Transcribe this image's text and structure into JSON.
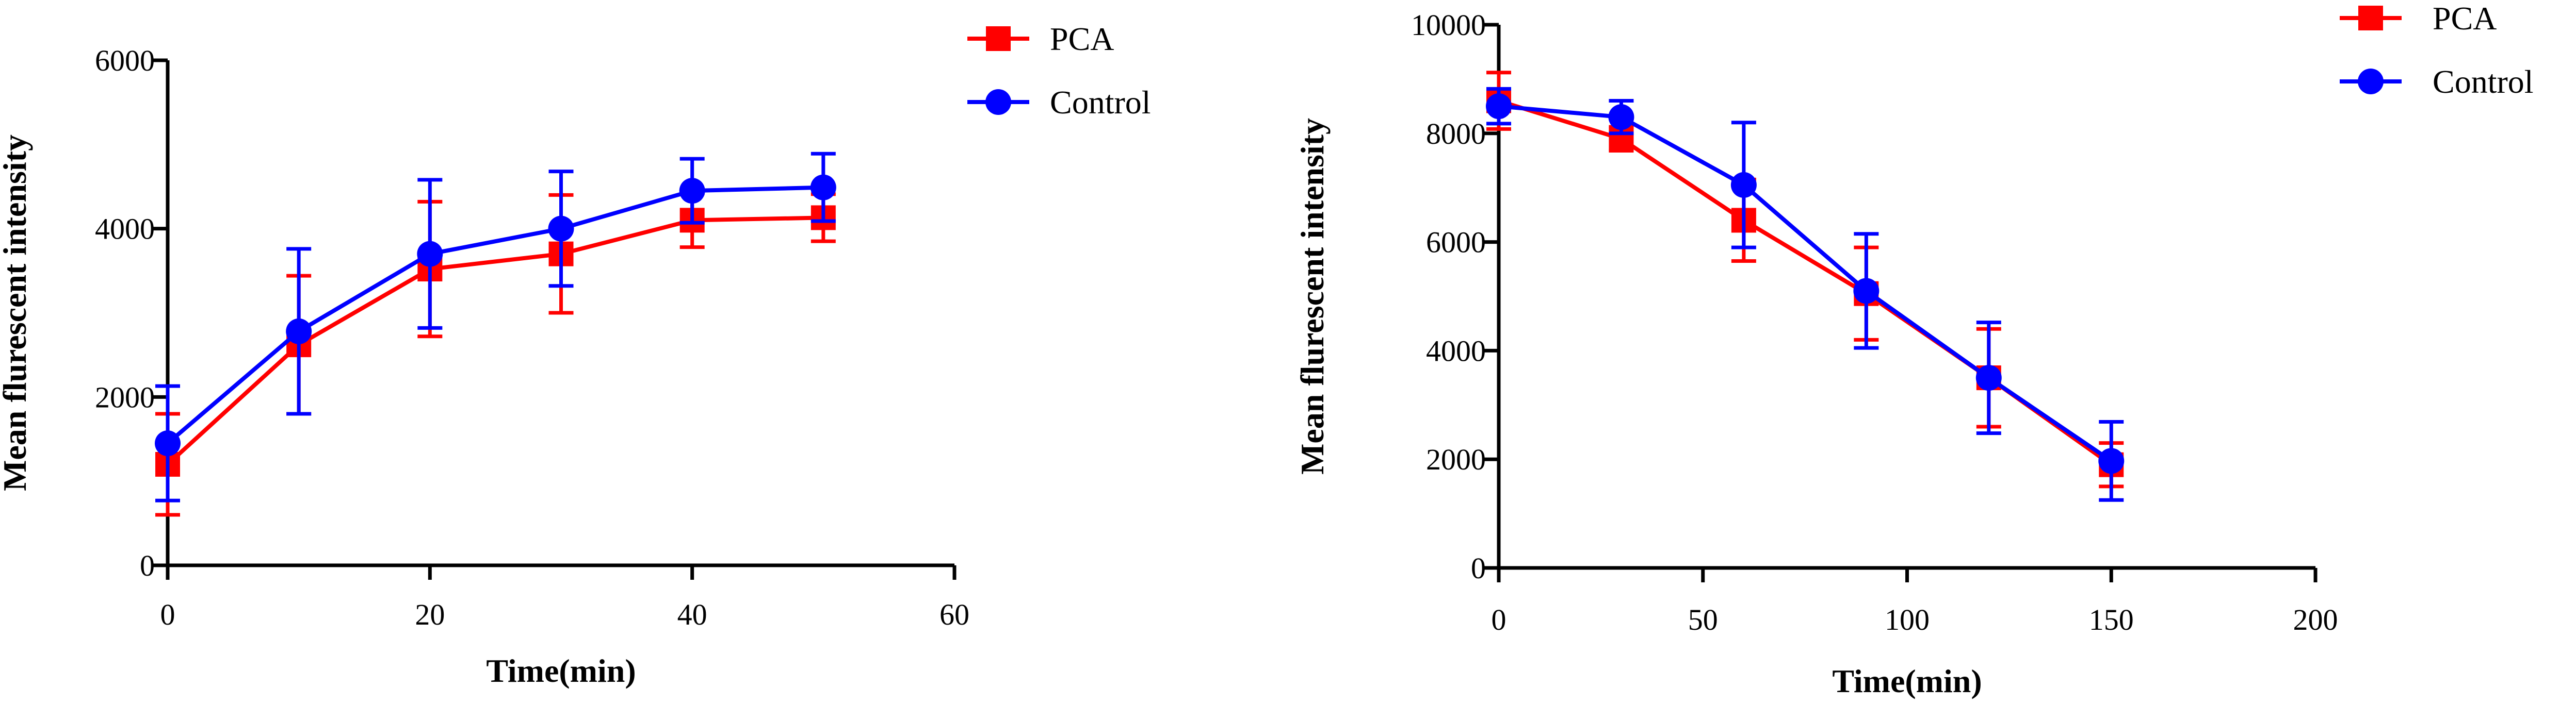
{
  "chart_data": [
    {
      "type": "line",
      "title": "",
      "xlabel": "Time(min)",
      "ylabel": "Mean flurescent intensity",
      "xlim": [
        0,
        60
      ],
      "ylim": [
        0,
        6000
      ],
      "xticks": [
        0,
        20,
        40,
        60
      ],
      "yticks": [
        0,
        2000,
        4000,
        6000
      ],
      "grid": false,
      "legend_position": "top-right",
      "series": [
        {
          "name": "PCA",
          "color": "#ff0000",
          "marker": "square",
          "x": [
            0,
            10,
            20,
            30,
            40,
            50
          ],
          "y": [
            1200,
            2620,
            3520,
            3700,
            4100,
            4130
          ],
          "error": [
            600,
            820,
            800,
            700,
            320,
            280
          ]
        },
        {
          "name": "Control",
          "color": "#0000ff",
          "marker": "circle",
          "x": [
            0,
            10,
            20,
            30,
            40,
            50
          ],
          "y": [
            1450,
            2780,
            3700,
            4000,
            4450,
            4490
          ],
          "error": [
            680,
            980,
            880,
            680,
            380,
            400
          ]
        }
      ]
    },
    {
      "type": "line",
      "title": "",
      "xlabel": "Time(min)",
      "ylabel": "Mean flurescent intensity",
      "xlim": [
        0,
        200
      ],
      "ylim": [
        0,
        10000
      ],
      "xticks": [
        0,
        50,
        100,
        150,
        200
      ],
      "yticks": [
        0,
        2000,
        4000,
        6000,
        8000,
        10000
      ],
      "grid": false,
      "legend_position": "top-right",
      "series": [
        {
          "name": "PCA",
          "color": "#ff0000",
          "marker": "square",
          "x": [
            0,
            30,
            60,
            90,
            120,
            150
          ],
          "y": [
            8600,
            7900,
            6400,
            5050,
            3500,
            1900
          ],
          "error": [
            520,
            220,
            750,
            850,
            900,
            400
          ]
        },
        {
          "name": "Control",
          "color": "#0000ff",
          "marker": "circle",
          "x": [
            0,
            30,
            60,
            90,
            120,
            150
          ],
          "y": [
            8500,
            8300,
            7050,
            5100,
            3500,
            1970
          ],
          "error": [
            320,
            300,
            1150,
            1050,
            1020,
            720
          ]
        }
      ]
    }
  ]
}
